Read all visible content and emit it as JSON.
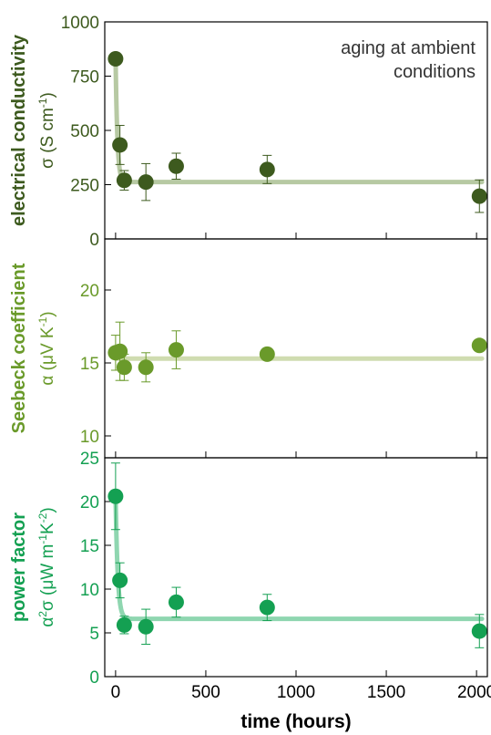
{
  "chart_data": [
    {
      "type": "scatter",
      "panel": "top",
      "ylabel_bold": "electrical conductivity",
      "ylabel_symbol": "σ (S cm",
      "ylabel_symbol_sup": "-1",
      "ylabel_symbol_end": ")",
      "annotation_lines": [
        "aging at ambient",
        "conditions"
      ],
      "ylim": [
        0,
        1000
      ],
      "yticks": [
        0,
        250,
        500,
        750,
        1000
      ],
      "xlim": [
        -60,
        2060
      ],
      "color": "#3d5a1e",
      "fit_color": "#b7c9a3",
      "points": [
        {
          "x": 0,
          "y": 830,
          "err": 10
        },
        {
          "x": 24,
          "y": 433,
          "err": 90
        },
        {
          "x": 48,
          "y": 270,
          "err": 45
        },
        {
          "x": 168,
          "y": 262,
          "err": 85
        },
        {
          "x": 336,
          "y": 335,
          "err": 60
        },
        {
          "x": 840,
          "y": 320,
          "err": 65
        },
        {
          "x": 2016,
          "y": 197,
          "err": 75
        }
      ],
      "fit": {
        "plateau": 262,
        "initial": 830,
        "tau": 10
      }
    },
    {
      "type": "scatter",
      "panel": "middle",
      "ylabel_bold": "Seebeck coefficient",
      "ylabel_symbol": "α (μV K",
      "ylabel_symbol_sup": "-1",
      "ylabel_symbol_end": ")",
      "ylim": [
        8.5,
        23.5
      ],
      "yticks": [
        10,
        15,
        20
      ],
      "xlim": [
        -60,
        2060
      ],
      "color": "#6a9a2a",
      "fit_color": "#cfdcb0",
      "points": [
        {
          "x": 0,
          "y": 15.7,
          "err": 1.2
        },
        {
          "x": 24,
          "y": 15.8,
          "err": 2.0
        },
        {
          "x": 48,
          "y": 14.7,
          "err": 0.9
        },
        {
          "x": 168,
          "y": 14.7,
          "err": 1.0
        },
        {
          "x": 336,
          "y": 15.9,
          "err": 1.3
        },
        {
          "x": 840,
          "y": 15.6,
          "err": 0.2
        },
        {
          "x": 2016,
          "y": 16.2,
          "err": 0.2
        }
      ],
      "fit": {
        "plateau": 15.3,
        "initial": 15.3,
        "tau": 10
      }
    },
    {
      "type": "scatter",
      "panel": "bottom",
      "ylabel_bold": "power factor",
      "ylabel_symbol": "α",
      "ylabel_symbol_sup": "2",
      "ylabel_symbol_mid": "σ (μW m",
      "ylabel_symbol_sup2": "-1",
      "ylabel_symbol_mid2": "K",
      "ylabel_symbol_sup3": "-2",
      "ylabel_symbol_end": ")",
      "ylim": [
        0,
        25
      ],
      "yticks": [
        0,
        5,
        10,
        15,
        20,
        25
      ],
      "xlim": [
        -60,
        2060
      ],
      "xticks": [
        0,
        500,
        1000,
        1500,
        2000
      ],
      "xlabel": "time (hours)",
      "color": "#14a052",
      "fit_color": "#8fd6b0",
      "points": [
        {
          "x": 0,
          "y": 20.6,
          "err": 3.8
        },
        {
          "x": 24,
          "y": 11.0,
          "err": 2.0
        },
        {
          "x": 48,
          "y": 5.9,
          "err": 1.0
        },
        {
          "x": 168,
          "y": 5.7,
          "err": 2.0
        },
        {
          "x": 336,
          "y": 8.5,
          "err": 1.7
        },
        {
          "x": 840,
          "y": 7.9,
          "err": 1.5
        },
        {
          "x": 2016,
          "y": 5.2,
          "err": 1.9
        }
      ],
      "fit": {
        "plateau": 6.6,
        "initial": 20.6,
        "tau": 12
      }
    }
  ]
}
